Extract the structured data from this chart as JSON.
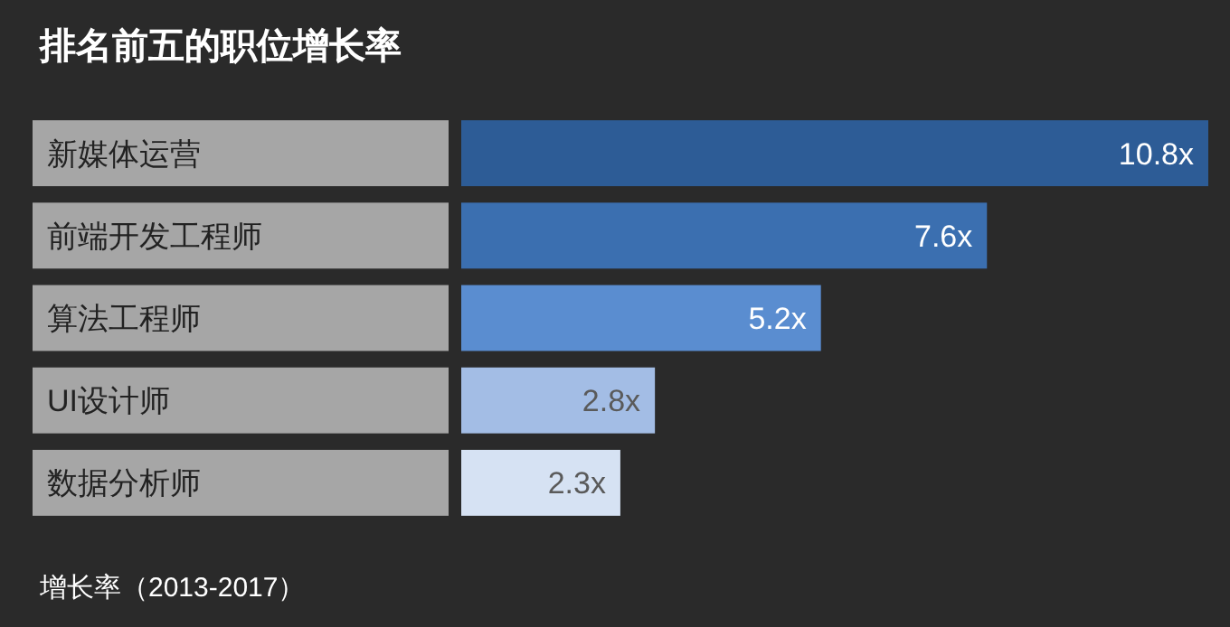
{
  "chart_data": {
    "type": "bar",
    "orientation": "horizontal",
    "title": "排名前五的职位增长率",
    "categories": [
      "新媒体运营",
      "前端开发工程师",
      "算法工程师",
      "UI设计师",
      "数据分析师"
    ],
    "values": [
      10.8,
      7.6,
      5.2,
      2.8,
      2.3
    ],
    "value_labels": [
      "10.8x",
      "7.6x",
      "5.2x",
      "2.8x",
      "2.3x"
    ],
    "colors": [
      "#2d5c96",
      "#3b6fb0",
      "#5a8dd0",
      "#a3bde5",
      "#d6e2f3"
    ],
    "annotations": [
      "增长率（2013-2017）"
    ]
  }
}
